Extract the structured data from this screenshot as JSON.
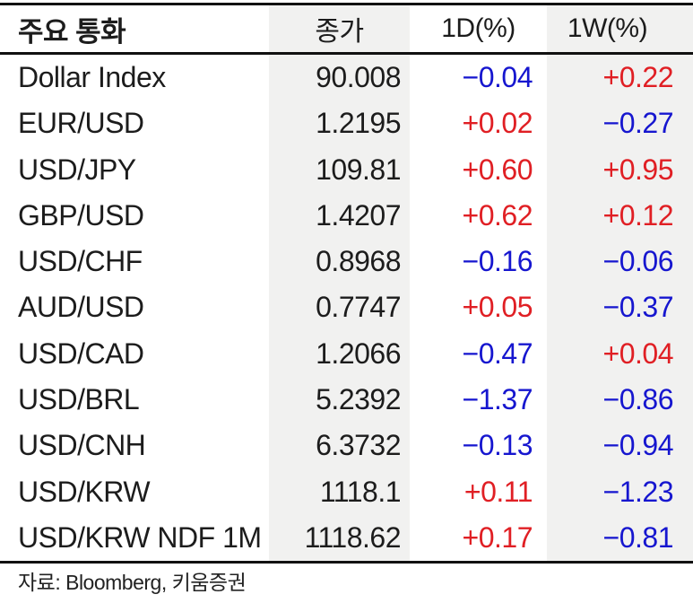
{
  "colors": {
    "up": "#e01f24",
    "down": "#1616cf",
    "column_shade": "#f1f1f0",
    "rule": "#111111"
  },
  "table": {
    "columns": [
      {
        "label": "주요 통화"
      },
      {
        "label": "종가"
      },
      {
        "label": "1D(%)"
      },
      {
        "label": "1W(%)"
      }
    ],
    "rows": [
      {
        "name": "Dollar Index",
        "close": "90.008",
        "d1": "−0.04",
        "d1_dir": "down",
        "w1": "+0.22",
        "w1_dir": "up"
      },
      {
        "name": "EUR/USD",
        "close": "1.2195",
        "d1": "+0.02",
        "d1_dir": "up",
        "w1": "−0.27",
        "w1_dir": "down"
      },
      {
        "name": "USD/JPY",
        "close": "109.81",
        "d1": "+0.60",
        "d1_dir": "up",
        "w1": "+0.95",
        "w1_dir": "up"
      },
      {
        "name": "GBP/USD",
        "close": "1.4207",
        "d1": "+0.62",
        "d1_dir": "up",
        "w1": "+0.12",
        "w1_dir": "up"
      },
      {
        "name": "USD/CHF",
        "close": "0.8968",
        "d1": "−0.16",
        "d1_dir": "down",
        "w1": "−0.06",
        "w1_dir": "down"
      },
      {
        "name": "AUD/USD",
        "close": "0.7747",
        "d1": "+0.05",
        "d1_dir": "up",
        "w1": "−0.37",
        "w1_dir": "down"
      },
      {
        "name": "USD/CAD",
        "close": "1.2066",
        "d1": "−0.47",
        "d1_dir": "down",
        "w1": "+0.04",
        "w1_dir": "up"
      },
      {
        "name": "USD/BRL",
        "close": "5.2392",
        "d1": "−1.37",
        "d1_dir": "down",
        "w1": "−0.86",
        "w1_dir": "down"
      },
      {
        "name": "USD/CNH",
        "close": "6.3732",
        "d1": "−0.13",
        "d1_dir": "down",
        "w1": "−0.94",
        "w1_dir": "down"
      },
      {
        "name": "USD/KRW",
        "close": "1118.1",
        "d1": "+0.11",
        "d1_dir": "up",
        "w1": "−1.23",
        "w1_dir": "down"
      },
      {
        "name": "USD/KRW NDF 1M",
        "close": "1118.62",
        "d1": "+0.17",
        "d1_dir": "up",
        "w1": "−0.81",
        "w1_dir": "down"
      }
    ]
  },
  "footer": {
    "source": "자료: Bloomberg, 키움증권"
  },
  "chart_data": {
    "type": "table",
    "title": "주요 통화",
    "columns": [
      "주요 통화",
      "종가",
      "1D(%)",
      "1W(%)"
    ],
    "rows": [
      [
        "Dollar Index",
        90.008,
        -0.04,
        0.22
      ],
      [
        "EUR/USD",
        1.2195,
        0.02,
        -0.27
      ],
      [
        "USD/JPY",
        109.81,
        0.6,
        0.95
      ],
      [
        "GBP/USD",
        1.4207,
        0.62,
        0.12
      ],
      [
        "USD/CHF",
        0.8968,
        -0.16,
        -0.06
      ],
      [
        "AUD/USD",
        0.7747,
        0.05,
        -0.37
      ],
      [
        "USD/CAD",
        1.2066,
        -0.47,
        0.04
      ],
      [
        "USD/BRL",
        5.2392,
        -1.37,
        -0.86
      ],
      [
        "USD/CNH",
        6.3732,
        -0.13,
        -0.94
      ],
      [
        "USD/KRW",
        1118.1,
        0.11,
        -1.23
      ],
      [
        "USD/KRW NDF 1M",
        1118.62,
        0.17,
        -0.81
      ]
    ],
    "source": "자료: Bloomberg, 키움증권",
    "layout_hints": {
      "shaded_columns": [
        "종가",
        "1W(%)"
      ],
      "positive_color": "#e01f24",
      "negative_color": "#1616cf"
    }
  }
}
